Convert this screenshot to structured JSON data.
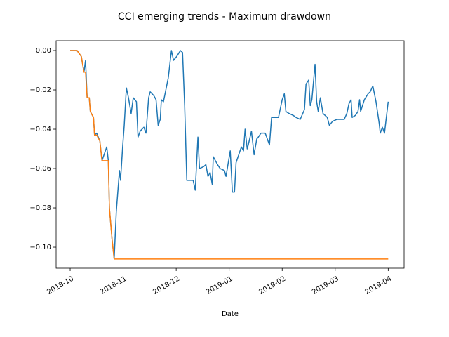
{
  "chart_data": {
    "type": "line",
    "title": "CCI emerging trends - Maximum drawdown",
    "x_label": "Date",
    "xlim": [
      -0.265,
      6.3
    ],
    "xticks": [
      {
        "value": 0,
        "label": "2018-10"
      },
      {
        "value": 1,
        "label": "2018-11"
      },
      {
        "value": 2,
        "label": "2018-12"
      },
      {
        "value": 3,
        "label": "2019-01"
      },
      {
        "value": 4,
        "label": "2019-02"
      },
      {
        "value": 5,
        "label": "2019-03"
      },
      {
        "value": 6,
        "label": "2019-04"
      }
    ],
    "ylim": [
      -0.1107,
      0.005
    ],
    "yticks": [
      {
        "value": -0.1,
        "label": "−0.10"
      },
      {
        "value": -0.08,
        "label": "−0.08"
      },
      {
        "value": -0.06,
        "label": "−0.06"
      },
      {
        "value": -0.04,
        "label": "−0.04"
      },
      {
        "value": -0.02,
        "label": "−0.02"
      },
      {
        "value": 0,
        "label": "0.00"
      }
    ],
    "series": [
      {
        "color": "#1f77b4",
        "x": [
          0,
          0.13,
          0.21,
          0.26,
          0.29,
          0.32,
          0.36,
          0.38,
          0.44,
          0.46,
          0.5,
          0.56,
          0.6,
          0.69,
          0.72,
          0.74,
          0.79,
          0.83,
          0.87,
          0.93,
          0.95,
          0.99,
          1.02,
          1.06,
          1.1,
          1.15,
          1.19,
          1.25,
          1.28,
          1.32,
          1.39,
          1.43,
          1.48,
          1.51,
          1.58,
          1.62,
          1.66,
          1.7,
          1.72,
          1.76,
          1.85,
          1.91,
          1.95,
          2.01,
          2.08,
          2.12,
          2.16,
          2.2,
          2.28,
          2.32,
          2.36,
          2.41,
          2.44,
          2.52,
          2.56,
          2.6,
          2.64,
          2.68,
          2.7,
          2.78,
          2.83,
          2.91,
          2.94,
          3.02,
          3.06,
          3.1,
          3.13,
          3.23,
          3.27,
          3.3,
          3.34,
          3.36,
          3.42,
          3.47,
          3.52,
          3.55,
          3.6,
          3.68,
          3.76,
          3.8,
          3.93,
          4.0,
          4.04,
          4.07,
          4.13,
          4.21,
          4.26,
          4.34,
          4.42,
          4.45,
          4.5,
          4.53,
          4.56,
          4.62,
          4.65,
          4.68,
          4.72,
          4.77,
          4.85,
          4.89,
          4.95,
          5.03,
          5.17,
          5.22,
          5.26,
          5.3,
          5.32,
          5.38,
          5.43,
          5.46,
          5.48,
          5.55,
          5.62,
          5.66,
          5.71,
          5.77,
          5.83,
          5.85,
          5.89,
          5.93,
          6.0
        ],
        "values": [
          0,
          0,
          -0.003,
          -0.011,
          -0.005,
          -0.024,
          -0.024,
          -0.031,
          -0.034,
          -0.043,
          -0.042,
          -0.046,
          -0.056,
          -0.049,
          -0.056,
          -0.08,
          -0.096,
          -0.106,
          -0.082,
          -0.061,
          -0.066,
          -0.049,
          -0.038,
          -0.019,
          -0.024,
          -0.032,
          -0.024,
          -0.026,
          -0.044,
          -0.041,
          -0.039,
          -0.042,
          -0.024,
          -0.021,
          -0.023,
          -0.025,
          -0.038,
          -0.035,
          -0.025,
          -0.026,
          -0.014,
          0,
          -0.005,
          -0.003,
          0,
          -0.001,
          -0.028,
          -0.066,
          -0.066,
          -0.066,
          -0.071,
          -0.044,
          -0.06,
          -0.059,
          -0.058,
          -0.064,
          -0.062,
          -0.068,
          -0.054,
          -0.058,
          -0.06,
          -0.061,
          -0.064,
          -0.051,
          -0.072,
          -0.072,
          -0.057,
          -0.049,
          -0.051,
          -0.04,
          -0.05,
          -0.048,
          -0.041,
          -0.053,
          -0.045,
          -0.044,
          -0.042,
          -0.042,
          -0.048,
          -0.034,
          -0.034,
          -0.025,
          -0.022,
          -0.031,
          -0.032,
          -0.033,
          -0.034,
          -0.035,
          -0.03,
          -0.017,
          -0.015,
          -0.028,
          -0.025,
          -0.007,
          -0.026,
          -0.031,
          -0.024,
          -0.032,
          -0.034,
          -0.038,
          -0.036,
          -0.035,
          -0.035,
          -0.032,
          -0.027,
          -0.025,
          -0.034,
          -0.033,
          -0.031,
          -0.025,
          -0.031,
          -0.025,
          -0.022,
          -0.021,
          -0.018,
          -0.026,
          -0.037,
          -0.042,
          -0.039,
          -0.042,
          -0.026
        ]
      },
      {
        "color": "#ff7f0e",
        "x": [
          0,
          0.13,
          0.21,
          0.26,
          0.29,
          0.32,
          0.36,
          0.38,
          0.44,
          0.46,
          0.5,
          0.56,
          0.6,
          0.69,
          0.72,
          0.74,
          0.79,
          0.83,
          6.0
        ],
        "values": [
          0,
          0,
          -0.003,
          -0.011,
          -0.011,
          -0.024,
          -0.024,
          -0.031,
          -0.034,
          -0.043,
          -0.043,
          -0.046,
          -0.056,
          -0.056,
          -0.056,
          -0.08,
          -0.096,
          -0.106,
          -0.106
        ]
      }
    ]
  }
}
